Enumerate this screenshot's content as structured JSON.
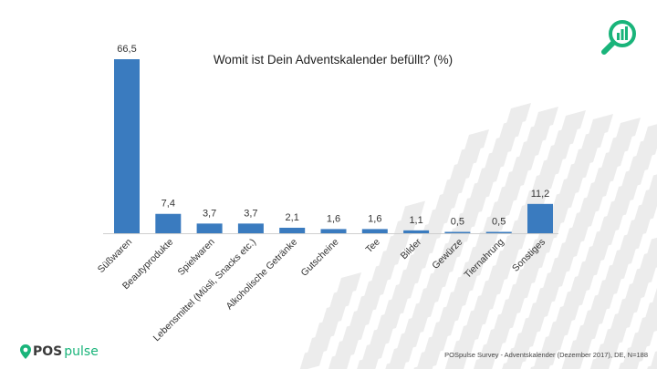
{
  "header": {
    "title": "Womit ist Dein Adventskalender befüllt? (%)"
  },
  "footer": {
    "brand_part1": "POS",
    "brand_part2": "pulse",
    "source": "POSpulse Survey - Adventskalender (Dezember 2017), DE, N=188"
  },
  "icons": {
    "corner": "magnifier-chart-icon",
    "logo": "pin-icon"
  },
  "colors": {
    "bar": "#3a7bbf",
    "brand_green": "#19b47a",
    "pattern": "#ececec"
  },
  "chart_data": {
    "type": "bar",
    "title": "Womit ist Dein Adventskalender befüllt? (%)",
    "categories": [
      "Süßwaren",
      "Beautyprodukte",
      "Spielwaren",
      "Lebensmittel (Müsli, Snacks etc.)",
      "Alkoholische Getränke",
      "Gutscheine",
      "Tee",
      "Bilder",
      "Gewürze",
      "Tiernahrung",
      "Sonstiges"
    ],
    "values": [
      66.5,
      7.4,
      3.7,
      3.7,
      2.1,
      1.6,
      1.6,
      1.1,
      0.5,
      0.5,
      11.2
    ],
    "value_labels": [
      "66,5",
      "7,4",
      "3,7",
      "3,7",
      "2,1",
      "1,6",
      "1,6",
      "1,1",
      "0,5",
      "0,5",
      "11,2"
    ],
    "ylim": [
      0,
      66.5
    ],
    "grid": false,
    "legend": "none"
  }
}
